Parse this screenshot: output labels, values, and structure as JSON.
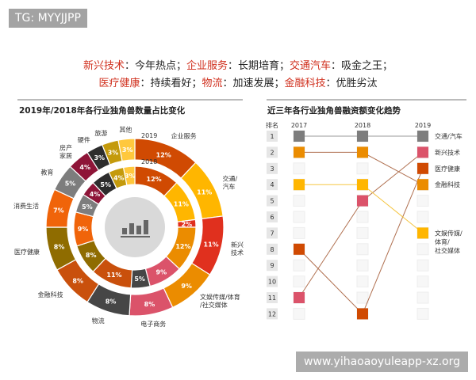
{
  "watermarks": {
    "top_left": "TG: MYYJJPP",
    "bottom_right": "www.yihaoaoyuleapp-xz.org"
  },
  "headline": {
    "line1": [
      {
        "k": "新兴技术",
        "v": "：今年热点；"
      },
      {
        "k": "企业服务",
        "v": "：长期培育；"
      },
      {
        "k": "交通汽车",
        "v": "：吸金之王；"
      }
    ],
    "line2": [
      {
        "k": "医疗健康",
        "v": "：持续看好；"
      },
      {
        "k": "物流",
        "v": "：加速发展；"
      },
      {
        "k": "金融科技",
        "v": "：优胜劣汰"
      }
    ]
  },
  "chart_data": [
    {
      "type": "pie",
      "title": "2019年/2018年各行业独角兽数量占比变化",
      "ring_labels": {
        "outer": "2019",
        "inner": "2018"
      },
      "center_icon": "bar-chart-icon",
      "categories": [
        "企业服务",
        "交通/汽车",
        "新兴技术",
        "文娱传媒/体育/社交媒体",
        "电子商务",
        "物流",
        "金融科技",
        "医疗健康",
        "消费生活",
        "教育",
        "房产家居",
        "硬件",
        "旅游",
        "其他"
      ],
      "colors": [
        "#d04a02",
        "#ffb600",
        "#e0301e",
        "#eb8c00",
        "#db536a",
        "#464646",
        "#c9500c",
        "#8f6c00",
        "#f0640a",
        "#7d7d7d",
        "#8e1538",
        "#2d2d2d",
        "#c49a0c",
        "#ffc83d"
      ],
      "series": [
        {
          "name": "2019",
          "values": [
            12,
            11,
            11,
            9,
            8,
            8,
            8,
            8,
            7,
            5,
            4,
            3,
            3,
            3
          ]
        },
        {
          "name": "2018",
          "values": [
            12,
            11,
            2,
            12,
            9,
            5,
            11,
            8,
            9,
            5,
            4,
            5,
            4,
            3
          ]
        }
      ],
      "unit": "%"
    },
    {
      "type": "line",
      "title": "近三年各行业独角兽融资额变化趋势",
      "rank_header": "排名",
      "x": [
        "2017",
        "2018",
        "2019"
      ],
      "ranks": [
        1,
        2,
        3,
        4,
        5,
        6,
        7,
        8,
        9,
        10,
        11,
        12
      ],
      "series": [
        {
          "name": "交通/汽车",
          "values": [
            1,
            1,
            1
          ],
          "color": "#7d7d7d"
        },
        {
          "name": "新兴技术",
          "values": [
            11,
            5,
            2
          ],
          "color": "#db536a"
        },
        {
          "name": "医疗健康",
          "values": [
            8,
            12,
            3
          ],
          "color": "#d04a02"
        },
        {
          "name": "金融科技",
          "values": [
            2,
            2,
            4
          ],
          "color": "#eb8c00"
        },
        {
          "name": "文娱传媒/体育/社交媒体",
          "values": [
            4,
            4,
            7
          ],
          "color": "#ffb600"
        }
      ]
    }
  ]
}
